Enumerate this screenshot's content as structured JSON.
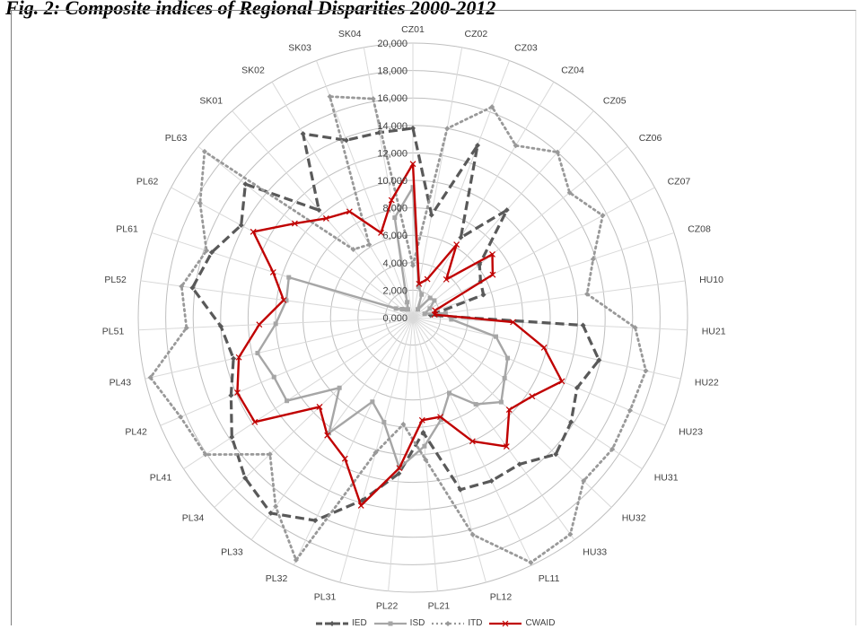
{
  "figure": {
    "title": "Fig. 2: Composite indices of Regional Disparities 2000-2012"
  },
  "chart_data": {
    "type": "radar",
    "categories": [
      "CZ01",
      "CZ02",
      "CZ03",
      "CZ04",
      "CZ05",
      "CZ06",
      "CZ07",
      "CZ08",
      "HU10",
      "HU21",
      "HU22",
      "HU23",
      "HU31",
      "HU32",
      "HU33",
      "PL11",
      "PL12",
      "PL21",
      "PL22",
      "PL31",
      "PL32",
      "PL33",
      "PL34",
      "PL41",
      "PL42",
      "PL43",
      "PL51",
      "PL52",
      "PL61",
      "PL62",
      "PL63",
      "SK01",
      "SK02",
      "SK03",
      "SK04"
    ],
    "axis_ticks": [
      "0,000",
      "2,000",
      "4,000",
      "6,000",
      "8,000",
      "10,000",
      "12,000",
      "14,000",
      "16,000",
      "18,000",
      "20,000"
    ],
    "rmin": 0,
    "rmax": 20000,
    "grid": true,
    "legend_position": "bottom",
    "series": [
      {
        "name": "IED",
        "color": "#595959",
        "style": "dashed",
        "values": [
          13800,
          7600,
          13400,
          6800,
          10400,
          6200,
          5600,
          5400,
          1300,
          12400,
          13900,
          13000,
          13800,
          14400,
          13200,
          13200,
          13000,
          8400,
          11400,
          13800,
          16400,
          17600,
          16900,
          15800,
          14400,
          13400,
          14000,
          16200,
          15400,
          14200,
          15600,
          10400,
          15600,
          13800,
          13700
        ]
      },
      {
        "name": "ISD",
        "color": "#a6a6a6",
        "style": "solid",
        "values": [
          9500,
          2300,
          1800,
          700,
          1900,
          2000,
          1400,
          900,
          2400,
          2800,
          6200,
          7500,
          8000,
          8900,
          7800,
          6100,
          7700,
          9400,
          11000,
          7900,
          6800,
          10400,
          7400,
          11000,
          11000,
          11600,
          10000,
          9300,
          9500,
          1400,
          1000,
          800,
          700,
          1200,
          7400
        ]
      },
      {
        "name": "ITD",
        "color": "#999999",
        "style": "dotted",
        "values": [
          3800,
          14000,
          16400,
          14600,
          16000,
          14600,
          15700,
          13800,
          12800,
          16200,
          17400,
          17200,
          17400,
          17200,
          19500,
          19800,
          16400,
          10400,
          7800,
          10200,
          19600,
          17000,
          14400,
          18100,
          18400,
          19600,
          16500,
          17000,
          15800,
          17600,
          19400,
          6600,
          6200,
          17200,
          16200
        ]
      },
      {
        "name": "CWAID",
        "color": "#c00000",
        "style": "solid",
        "values": [
          11200,
          2500,
          3000,
          6200,
          3700,
          7400,
          6600,
          1700,
          1600,
          7300,
          9800,
          11800,
          10400,
          9700,
          11600,
          10000,
          7500,
          7500,
          11000,
          14200,
          11400,
          10600,
          9400,
          13800,
          13900,
          13000,
          11200,
          9500,
          10700,
          13200,
          11000,
          9600,
          9000,
          6600,
          8700
        ]
      }
    ]
  }
}
